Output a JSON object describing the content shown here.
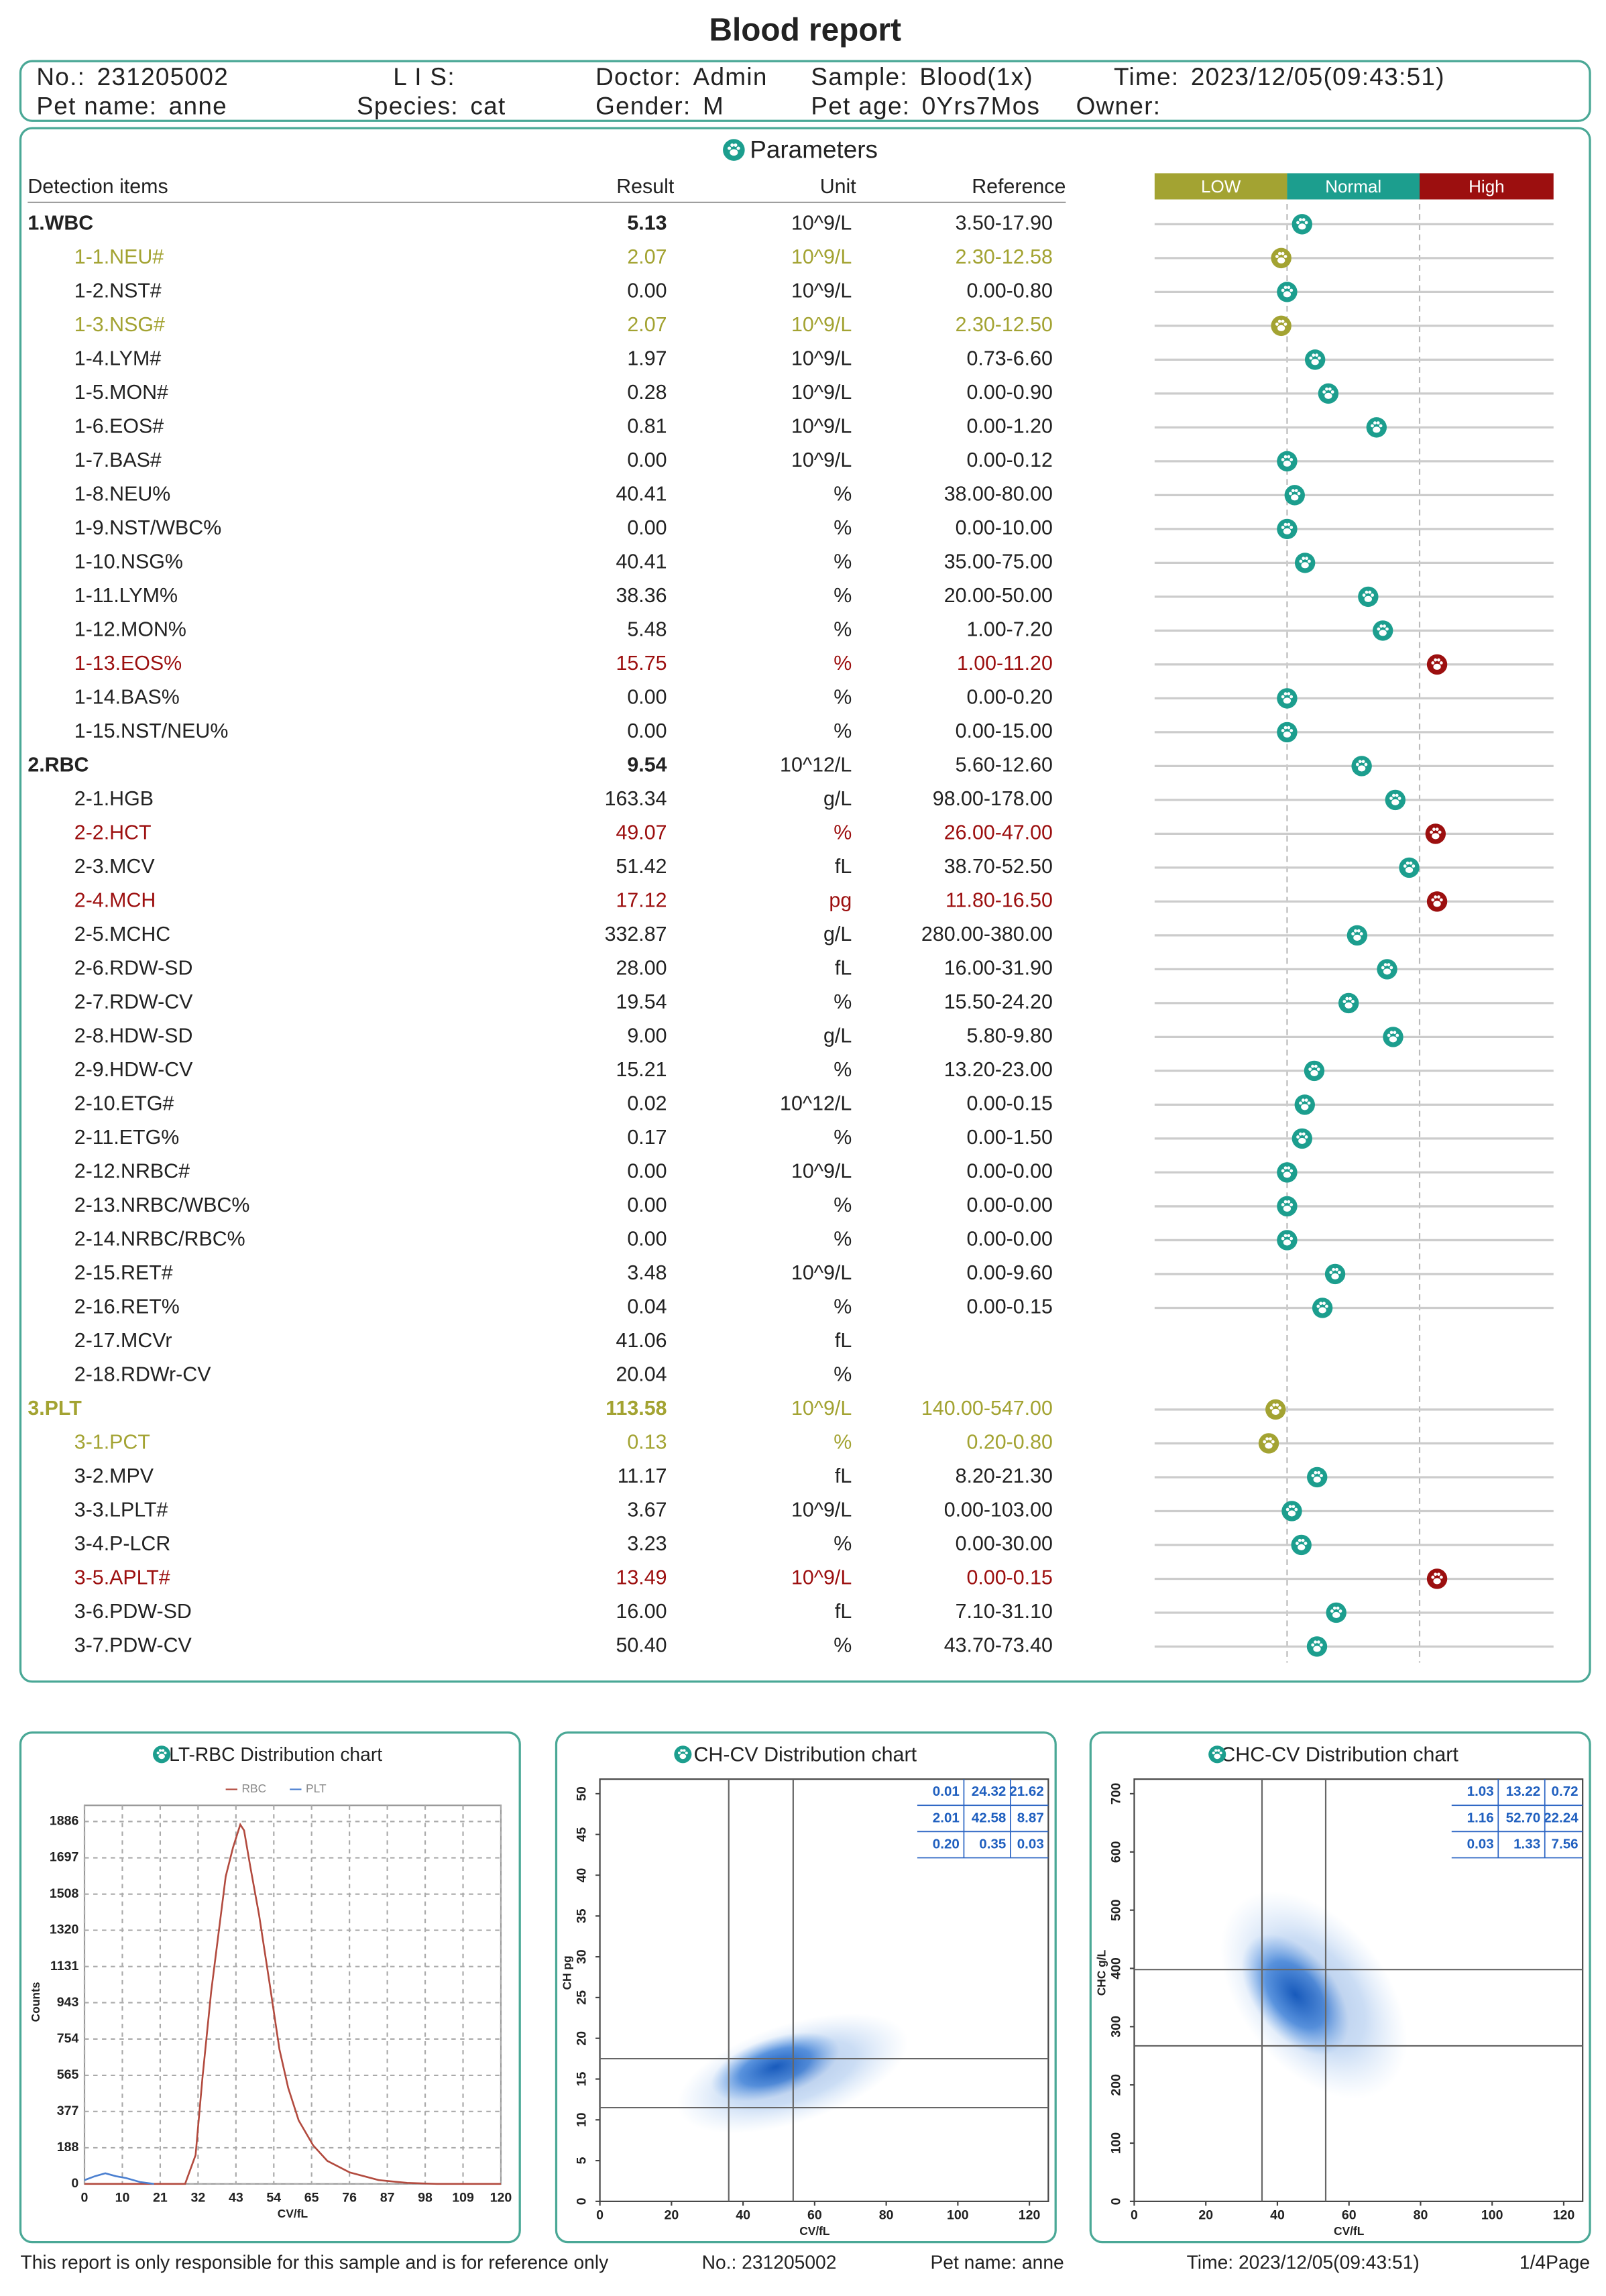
{
  "header": {
    "title": "Blood report",
    "fields": [
      [
        {
          "label": "No.:",
          "value": "231205002"
        },
        {
          "label": "L I S:"
        },
        {
          "label": "Doctor:",
          "value": "Admin"
        },
        {
          "label": "Sample:",
          "value": "Blood(1x)"
        },
        {
          "label": "Time:",
          "value": "2023/12/05(09:43:51)"
        }
      ],
      [
        {
          "label": "Pet name:",
          "value": "anne"
        },
        {
          "label": "Species:",
          "value": "cat"
        },
        {
          "label": "Gender:",
          "value": "M"
        },
        {
          "label": "Pet age:",
          "value": "0Yrs7Mos"
        },
        {
          "label": "Owner:"
        }
      ]
    ]
  },
  "parameters": {
    "title": "Parameters",
    "columns": [
      "Detection items",
      "Result",
      "Unit",
      "Reference"
    ],
    "legend": [
      {
        "label": "LOW",
        "color": "#a3a332"
      },
      {
        "label": "Normal",
        "color": "#1c9e8e"
      },
      {
        "label": "High",
        "color": "#9c0f0f"
      }
    ],
    "rows": [
      {
        "name": "1.WBC",
        "result": "5.13",
        "unit": "10^9/L",
        "reference": "3.50-17.90",
        "level": 1,
        "group": true
      },
      {
        "name": "1-1.NEU#",
        "result": "2.07",
        "unit": "10^9/L",
        "reference": "2.30-12.58",
        "level": 0
      },
      {
        "name": "1-2.NST#",
        "result": "0.00",
        "unit": "10^9/L",
        "reference": "0.00-0.80",
        "level": 1
      },
      {
        "name": "1-3.NSG#",
        "result": "2.07",
        "unit": "10^9/L",
        "reference": "2.30-12.50",
        "level": 0
      },
      {
        "name": "1-4.LYM#",
        "result": "1.97",
        "unit": "10^9/L",
        "reference": "0.73-6.60",
        "level": 1
      },
      {
        "name": "1-5.MON#",
        "result": "0.28",
        "unit": "10^9/L",
        "reference": "0.00-0.90",
        "level": 1
      },
      {
        "name": "1-6.EOS#",
        "result": "0.81",
        "unit": "10^9/L",
        "reference": "0.00-1.20",
        "level": 1
      },
      {
        "name": "1-7.BAS#",
        "result": "0.00",
        "unit": "10^9/L",
        "reference": "0.00-0.12",
        "level": 1
      },
      {
        "name": "1-8.NEU%",
        "result": "40.41",
        "unit": "%",
        "reference": "38.00-80.00",
        "level": 1
      },
      {
        "name": "1-9.NST/WBC%",
        "result": "0.00",
        "unit": "%",
        "reference": "0.00-10.00",
        "level": 1
      },
      {
        "name": "1-10.NSG%",
        "result": "40.41",
        "unit": "%",
        "reference": "35.00-75.00",
        "level": 1
      },
      {
        "name": "1-11.LYM%",
        "result": "38.36",
        "unit": "%",
        "reference": "20.00-50.00",
        "level": 1
      },
      {
        "name": "1-12.MON%",
        "result": "5.48",
        "unit": "%",
        "reference": "1.00-7.20",
        "level": 1
      },
      {
        "name": "1-13.EOS%",
        "result": "15.75",
        "unit": "%",
        "reference": "1.00-11.20",
        "level": 2
      },
      {
        "name": "1-14.BAS%",
        "result": "0.00",
        "unit": "%",
        "reference": "0.00-0.20",
        "level": 1
      },
      {
        "name": "1-15.NST/NEU%",
        "result": "0.00",
        "unit": "%",
        "reference": "0.00-15.00",
        "level": 1
      },
      {
        "name": "2.RBC",
        "result": "9.54",
        "unit": "10^12/L",
        "reference": "5.60-12.60",
        "level": 1,
        "group": true
      },
      {
        "name": "2-1.HGB",
        "result": "163.34",
        "unit": "g/L",
        "reference": "98.00-178.00",
        "level": 1
      },
      {
        "name": "2-2.HCT",
        "result": "49.07",
        "unit": "%",
        "reference": "26.00-47.00",
        "level": 2
      },
      {
        "name": "2-3.MCV",
        "result": "51.42",
        "unit": "fL",
        "reference": "38.70-52.50",
        "level": 1
      },
      {
        "name": "2-4.MCH",
        "result": "17.12",
        "unit": "pg",
        "reference": "11.80-16.50",
        "level": 2
      },
      {
        "name": "2-5.MCHC",
        "result": "332.87",
        "unit": "g/L",
        "reference": "280.00-380.00",
        "level": 1
      },
      {
        "name": "2-6.RDW-SD",
        "result": "28.00",
        "unit": "fL",
        "reference": "16.00-31.90",
        "level": 1
      },
      {
        "name": "2-7.RDW-CV",
        "result": "19.54",
        "unit": "%",
        "reference": "15.50-24.20",
        "level": 1
      },
      {
        "name": "2-8.HDW-SD",
        "result": "9.00",
        "unit": "g/L",
        "reference": "5.80-9.80",
        "level": 1
      },
      {
        "name": "2-9.HDW-CV",
        "result": "15.21",
        "unit": "%",
        "reference": "13.20-23.00",
        "level": 1
      },
      {
        "name": "2-10.ETG#",
        "result": "0.02",
        "unit": "10^12/L",
        "reference": "0.00-0.15",
        "level": 1
      },
      {
        "name": "2-11.ETG%",
        "result": "0.17",
        "unit": "%",
        "reference": "0.00-1.50",
        "level": 1
      },
      {
        "name": "2-12.NRBC#",
        "result": "0.00",
        "unit": "10^9/L",
        "reference": "0.00-0.00",
        "level": 1
      },
      {
        "name": "2-13.NRBC/WBC%",
        "result": "0.00",
        "unit": "%",
        "reference": "0.00-0.00",
        "level": 1
      },
      {
        "name": "2-14.NRBC/RBC%",
        "result": "0.00",
        "unit": "%",
        "reference": "0.00-0.00",
        "level": 1
      },
      {
        "name": "2-15.RET#",
        "result": "3.48",
        "unit": "10^9/L",
        "reference": "0.00-9.60",
        "level": 1
      },
      {
        "name": "2-16.RET%",
        "result": "0.04",
        "unit": "%",
        "reference": "0.00-0.15",
        "level": 1
      },
      {
        "name": "2-17.MCVr",
        "result": "41.06",
        "unit": "fL",
        "level": 1
      },
      {
        "name": "2-18.RDWr-CV",
        "result": "20.04",
        "unit": "%",
        "level": 1
      },
      {
        "name": "3.PLT",
        "result": "113.58",
        "unit": "10^9/L",
        "reference": "140.00-547.00",
        "level": 0,
        "group": true
      },
      {
        "name": "3-1.PCT",
        "result": "0.13",
        "unit": "%",
        "reference": "0.20-0.80",
        "level": 0
      },
      {
        "name": "3-2.MPV",
        "result": "11.17",
        "unit": "fL",
        "reference": "8.20-21.30",
        "level": 1
      },
      {
        "name": "3-3.LPLT#",
        "result": "3.67",
        "unit": "10^9/L",
        "reference": "0.00-103.00",
        "level": 1
      },
      {
        "name": "3-4.P-LCR",
        "result": "3.23",
        "unit": "%",
        "reference": "0.00-30.00",
        "level": 1
      },
      {
        "name": "3-5.APLT#",
        "result": "13.49",
        "unit": "10^9/L",
        "reference": "0.00-0.15",
        "level": 2
      },
      {
        "name": "3-6.PDW-SD",
        "result": "16.00",
        "unit": "fL",
        "reference": "7.10-31.10",
        "level": 1
      },
      {
        "name": "3-7.PDW-CV",
        "result": "50.40",
        "unit": "%",
        "reference": "43.70-73.40",
        "level": 1
      }
    ]
  },
  "chart_data": [
    {
      "type": "line",
      "title": "PLT-RBC Distribution chart",
      "xlabel": "CV/fL",
      "ylabel": "Counts",
      "xlim": [
        0,
        120
      ],
      "ylim": [
        0,
        1970
      ],
      "xticks": [
        0,
        {
          "value": 10.91,
          "label": "10"
        },
        {
          "value": 21.82,
          "label": "21"
        },
        {
          "value": 32.73,
          "label": "32"
        },
        {
          "value": 43.64,
          "label": "43"
        },
        {
          "value": 54.55,
          "label": "54"
        },
        {
          "value": 65.45,
          "label": "65"
        },
        {
          "value": 76.36,
          "label": "76"
        },
        {
          "value": 87.27,
          "label": "87"
        },
        {
          "value": 98.18,
          "label": "98"
        },
        {
          "value": 109.09,
          "label": "109"
        },
        120
      ],
      "yticks": [
        0,
        188,
        377,
        565,
        754,
        943,
        1131,
        1320,
        1508,
        1697,
        1886
      ],
      "grid": true,
      "series": [
        {
          "name": "RBC",
          "color": "#b24a3e",
          "x": [
            0,
            29,
            32,
            34,
            36.5,
            38.6,
            40.7,
            42.8,
            44.9,
            46,
            47.8,
            50.3,
            53.3,
            56.2,
            58.7,
            61.7,
            65.9,
            70,
            76.4,
            84.8,
            93,
            101.5,
            120
          ],
          "values": [
            0,
            0,
            150,
            550,
            1000,
            1300,
            1600,
            1750,
            1870,
            1840,
            1650,
            1400,
            1050,
            700,
            500,
            330,
            200,
            120,
            60,
            20,
            5,
            0,
            0
          ]
        },
        {
          "name": "PLT",
          "color": "#4a7fd0",
          "x": [
            0,
            3,
            6,
            9,
            12,
            16,
            20
          ],
          "values": [
            20,
            40,
            55,
            40,
            30,
            10,
            0
          ]
        }
      ]
    },
    {
      "type": "scatter",
      "title": "CH-CV Distribution chart",
      "xlabel": "CV/fL",
      "ylabel": "CH pg",
      "xlim": [
        0,
        120
      ],
      "ylim": [
        0,
        50
      ],
      "xticks": [
        0,
        20,
        40,
        60,
        80,
        100,
        120
      ],
      "yticks": [
        0,
        5,
        10,
        15,
        20,
        25,
        30,
        35,
        40,
        45,
        50
      ],
      "gates": {
        "x": [
          36,
          54
        ],
        "y": [
          11.5,
          17.5
        ]
      },
      "table": [
        [
          "0.01",
          "24.32",
          "21.62"
        ],
        [
          "2.01",
          "42.58",
          "8.87"
        ],
        [
          "0.20",
          "0.35",
          "0.03"
        ]
      ]
    },
    {
      "type": "scatter",
      "title": "CHC-CV Distribution chart",
      "xlabel": "CV/fL",
      "ylabel": "CHC g/L",
      "xlim": [
        0,
        120
      ],
      "ylim": [
        0,
        700
      ],
      "xticks": [
        0,
        20,
        40,
        60,
        80,
        100,
        120
      ],
      "yticks": [
        0,
        100,
        200,
        300,
        400,
        500,
        600,
        700
      ],
      "gates": {
        "x": [
          35.7,
          53.5
        ],
        "y": [
          267,
          398
        ]
      },
      "table": [
        [
          "1.03",
          "13.22",
          "0.72"
        ],
        [
          "1.16",
          "52.70",
          "22.24"
        ],
        [
          "0.03",
          "1.33",
          "7.56"
        ]
      ]
    }
  ],
  "footer": [
    "This report is only responsible for this sample and is for reference only",
    "No.:  231205002",
    "Pet name:  anne",
    "Time:  2023/12/05(09:43:51)",
    "1/4Page"
  ]
}
